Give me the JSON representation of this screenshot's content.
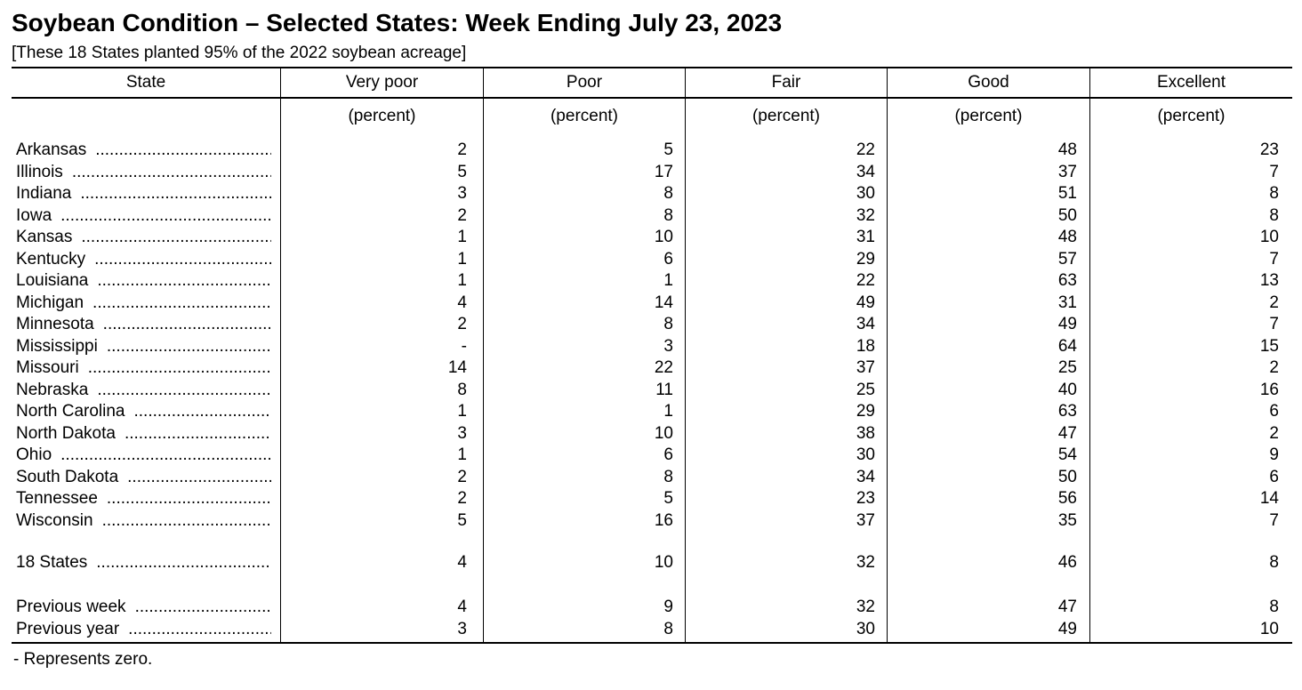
{
  "title": "Soybean Condition – Selected States: Week Ending July 23, 2023",
  "subtitle": "[These 18 States planted 95% of the 2022 soybean acreage]",
  "columns": {
    "state": "State",
    "very_poor": "Very poor",
    "poor": "Poor",
    "fair": "Fair",
    "good": "Good",
    "excellent": "Excellent"
  },
  "unit": "(percent)",
  "dot_leader": "...........................................................................",
  "rows": [
    {
      "state": "Arkansas",
      "very_poor": "2",
      "poor": "5",
      "fair": "22",
      "good": "48",
      "excellent": "23"
    },
    {
      "state": "Illinois",
      "very_poor": "5",
      "poor": "17",
      "fair": "34",
      "good": "37",
      "excellent": "7"
    },
    {
      "state": "Indiana",
      "very_poor": "3",
      "poor": "8",
      "fair": "30",
      "good": "51",
      "excellent": "8"
    },
    {
      "state": "Iowa",
      "very_poor": "2",
      "poor": "8",
      "fair": "32",
      "good": "50",
      "excellent": "8"
    },
    {
      "state": "Kansas",
      "very_poor": "1",
      "poor": "10",
      "fair": "31",
      "good": "48",
      "excellent": "10"
    },
    {
      "state": "Kentucky",
      "very_poor": "1",
      "poor": "6",
      "fair": "29",
      "good": "57",
      "excellent": "7"
    },
    {
      "state": "Louisiana",
      "very_poor": "1",
      "poor": "1",
      "fair": "22",
      "good": "63",
      "excellent": "13"
    },
    {
      "state": "Michigan",
      "very_poor": "4",
      "poor": "14",
      "fair": "49",
      "good": "31",
      "excellent": "2"
    },
    {
      "state": "Minnesota",
      "very_poor": "2",
      "poor": "8",
      "fair": "34",
      "good": "49",
      "excellent": "7"
    },
    {
      "state": "Mississippi",
      "very_poor": "-",
      "poor": "3",
      "fair": "18",
      "good": "64",
      "excellent": "15"
    },
    {
      "state": "Missouri",
      "very_poor": "14",
      "poor": "22",
      "fair": "37",
      "good": "25",
      "excellent": "2"
    },
    {
      "state": "Nebraska",
      "very_poor": "8",
      "poor": "11",
      "fair": "25",
      "good": "40",
      "excellent": "16"
    },
    {
      "state": "North Carolina",
      "very_poor": "1",
      "poor": "1",
      "fair": "29",
      "good": "63",
      "excellent": "6"
    },
    {
      "state": "North Dakota",
      "very_poor": "3",
      "poor": "10",
      "fair": "38",
      "good": "47",
      "excellent": "2"
    },
    {
      "state": "Ohio",
      "very_poor": "1",
      "poor": "6",
      "fair": "30",
      "good": "54",
      "excellent": "9"
    },
    {
      "state": "South Dakota",
      "very_poor": "2",
      "poor": "8",
      "fair": "34",
      "good": "50",
      "excellent": "6"
    },
    {
      "state": "Tennessee",
      "very_poor": "2",
      "poor": "5",
      "fair": "23",
      "good": "56",
      "excellent": "14"
    },
    {
      "state": "Wisconsin",
      "very_poor": "5",
      "poor": "16",
      "fair": "37",
      "good": "35",
      "excellent": "7"
    }
  ],
  "total": {
    "state": "18 States",
    "very_poor": "4",
    "poor": "10",
    "fair": "32",
    "good": "46",
    "excellent": "8"
  },
  "comparisons": [
    {
      "state": "Previous week",
      "very_poor": "4",
      "poor": "9",
      "fair": "32",
      "good": "47",
      "excellent": "8"
    },
    {
      "state": "Previous year",
      "very_poor": "3",
      "poor": "8",
      "fair": "30",
      "good": "49",
      "excellent": "10"
    }
  ],
  "footnote": "- Represents zero."
}
